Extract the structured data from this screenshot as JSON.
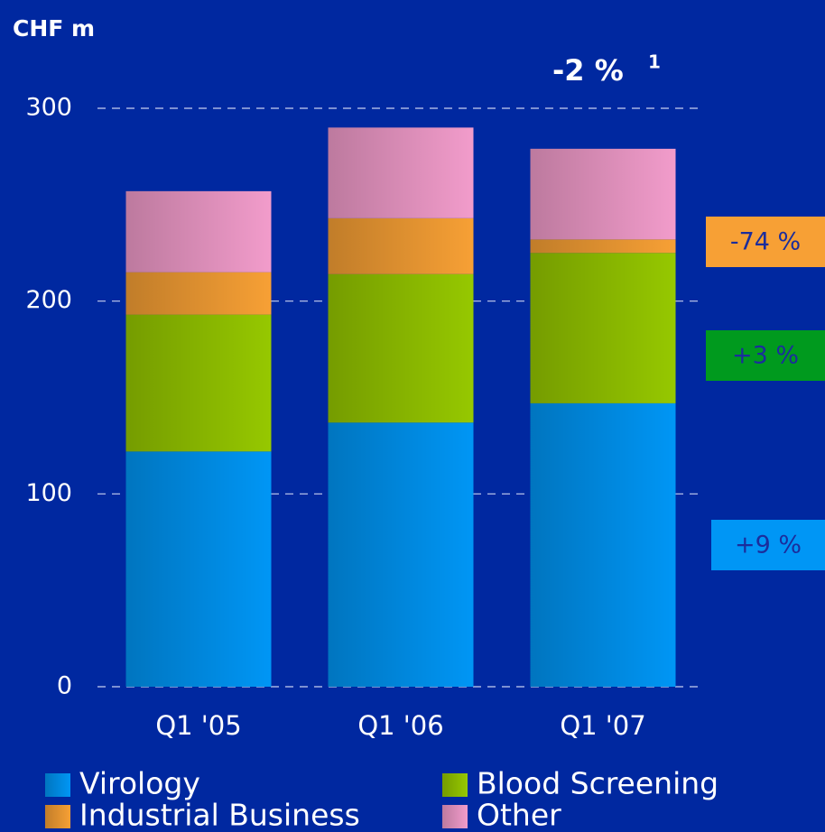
{
  "chart_data": {
    "type": "stacked_bar",
    "y_axis_label": "CHF m",
    "categories": [
      "Q1 '05",
      "Q1 '06",
      "Q1 '07"
    ],
    "series": [
      {
        "name": "Virology",
        "color": "#0096f5",
        "values": [
          122,
          137,
          147
        ]
      },
      {
        "name": "Blood Screening",
        "color": "#96c800",
        "values": [
          71,
          77,
          78
        ]
      },
      {
        "name": "Industrial Business",
        "color": "#f7a035",
        "values": [
          22,
          29,
          7
        ]
      },
      {
        "name": "Other",
        "color": "#f29ccb",
        "values": [
          42,
          47,
          47
        ]
      }
    ],
    "ylim": [
      0,
      300
    ],
    "yticks": [
      0,
      100,
      200,
      300
    ],
    "grid": true,
    "total_change": {
      "text": "-2 %",
      "footnote": "1"
    },
    "annotations": [
      {
        "text": "-74 %",
        "color": "#f7a035",
        "series": 2
      },
      {
        "text": "+3 %",
        "color": "#009a1e",
        "series": 1
      },
      {
        "text": "+9 %",
        "color": "#0096f5",
        "series": 0
      }
    ]
  }
}
